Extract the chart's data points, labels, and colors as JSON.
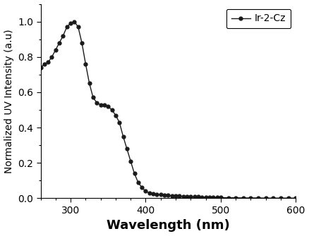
{
  "wavelengths": [
    260,
    265,
    270,
    275,
    280,
    285,
    290,
    295,
    300,
    305,
    310,
    315,
    320,
    325,
    330,
    335,
    340,
    345,
    350,
    355,
    360,
    365,
    370,
    375,
    380,
    385,
    390,
    395,
    400,
    405,
    410,
    415,
    420,
    425,
    430,
    435,
    440,
    445,
    450,
    455,
    460,
    465,
    470,
    475,
    480,
    485,
    490,
    495,
    500,
    510,
    520,
    530,
    540,
    550,
    560,
    570,
    580,
    590,
    600
  ],
  "intensities": [
    0.74,
    0.76,
    0.77,
    0.8,
    0.84,
    0.88,
    0.92,
    0.97,
    0.99,
    1.0,
    0.97,
    0.88,
    0.76,
    0.65,
    0.57,
    0.54,
    0.53,
    0.53,
    0.52,
    0.5,
    0.47,
    0.43,
    0.35,
    0.28,
    0.21,
    0.14,
    0.09,
    0.06,
    0.04,
    0.03,
    0.025,
    0.022,
    0.02,
    0.018,
    0.016,
    0.015,
    0.013,
    0.012,
    0.011,
    0.01,
    0.009,
    0.008,
    0.008,
    0.007,
    0.006,
    0.006,
    0.005,
    0.005,
    0.004,
    0.003,
    0.003,
    0.002,
    0.002,
    0.002,
    0.001,
    0.001,
    0.001,
    0.001,
    0.001
  ],
  "xlabel": "Wavelength (nm)",
  "ylabel": "Normalized UV Intensity (a.u)",
  "xlim": [
    260,
    600
  ],
  "ylim": [
    0.0,
    1.1
  ],
  "xticks": [
    300,
    400,
    500,
    600
  ],
  "yticks": [
    0.0,
    0.2,
    0.4,
    0.6,
    0.8,
    1.0
  ],
  "legend_label": "Ir-2-Cz",
  "line_color": "#1a1a1a",
  "marker": "o",
  "marker_size": 3.5,
  "line_width": 1.0,
  "background_color": "#ffffff",
  "xlabel_fontsize": 13,
  "ylabel_fontsize": 10,
  "tick_fontsize": 10,
  "legend_fontsize": 10
}
